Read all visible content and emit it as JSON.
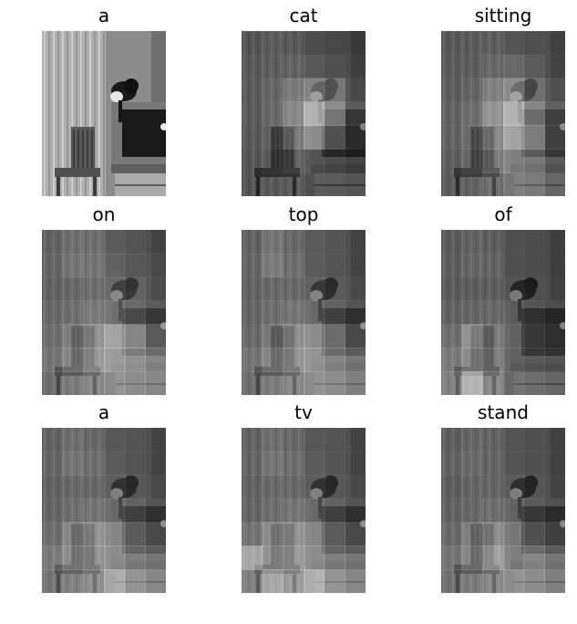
{
  "panels": [
    {
      "word": "a",
      "weights": null
    },
    {
      "word": "cat",
      "weights": [
        [
          0.05,
          0.1,
          0.08,
          0.1,
          0.06,
          0.05
        ],
        [
          0.08,
          0.12,
          0.15,
          0.18,
          0.12,
          0.08
        ],
        [
          0.1,
          0.18,
          0.35,
          0.5,
          0.4,
          0.15
        ],
        [
          0.1,
          0.2,
          0.45,
          0.85,
          0.6,
          0.25
        ],
        [
          0.08,
          0.15,
          0.35,
          0.6,
          0.4,
          0.18
        ],
        [
          0.06,
          0.1,
          0.15,
          0.2,
          0.15,
          0.1
        ],
        [
          0.05,
          0.08,
          0.1,
          0.12,
          0.1,
          0.06
        ]
      ]
    },
    {
      "word": "sitting",
      "weights": [
        [
          0.08,
          0.1,
          0.12,
          0.15,
          0.12,
          0.1
        ],
        [
          0.1,
          0.12,
          0.2,
          0.3,
          0.2,
          0.12
        ],
        [
          0.12,
          0.18,
          0.4,
          0.55,
          0.35,
          0.2
        ],
        [
          0.15,
          0.25,
          0.55,
          0.85,
          0.55,
          0.3
        ],
        [
          0.15,
          0.25,
          0.45,
          0.75,
          0.65,
          0.3
        ],
        [
          0.12,
          0.2,
          0.35,
          0.5,
          0.45,
          0.25
        ],
        [
          0.1,
          0.15,
          0.25,
          0.4,
          0.35,
          0.2
        ]
      ]
    },
    {
      "word": "on",
      "weights": [
        [
          0.15,
          0.25,
          0.25,
          0.2,
          0.15,
          0.12
        ],
        [
          0.18,
          0.3,
          0.3,
          0.25,
          0.18,
          0.15
        ],
        [
          0.15,
          0.2,
          0.25,
          0.3,
          0.25,
          0.18
        ],
        [
          0.2,
          0.25,
          0.35,
          0.4,
          0.35,
          0.25
        ],
        [
          0.25,
          0.4,
          0.55,
          0.75,
          0.7,
          0.45
        ],
        [
          0.3,
          0.45,
          0.6,
          0.7,
          0.65,
          0.55
        ],
        [
          0.25,
          0.35,
          0.45,
          0.55,
          0.5,
          0.45
        ]
      ]
    },
    {
      "word": "top",
      "weights": [
        [
          0.15,
          0.3,
          0.2,
          0.2,
          0.15,
          0.12
        ],
        [
          0.18,
          0.35,
          0.25,
          0.2,
          0.15,
          0.12
        ],
        [
          0.15,
          0.2,
          0.2,
          0.25,
          0.2,
          0.15
        ],
        [
          0.18,
          0.25,
          0.3,
          0.35,
          0.3,
          0.2
        ],
        [
          0.22,
          0.35,
          0.5,
          0.6,
          0.55,
          0.35
        ],
        [
          0.3,
          0.45,
          0.55,
          0.65,
          0.55,
          0.45
        ],
        [
          0.25,
          0.35,
          0.45,
          0.55,
          0.5,
          0.4
        ]
      ]
    },
    {
      "word": "of",
      "weights": [
        [
          0.1,
          0.15,
          0.12,
          0.12,
          0.1,
          0.08
        ],
        [
          0.12,
          0.18,
          0.15,
          0.12,
          0.1,
          0.08
        ],
        [
          0.1,
          0.12,
          0.12,
          0.15,
          0.12,
          0.1
        ],
        [
          0.15,
          0.18,
          0.2,
          0.25,
          0.2,
          0.15
        ],
        [
          0.25,
          0.55,
          0.35,
          0.3,
          0.25,
          0.2
        ],
        [
          0.35,
          0.5,
          0.4,
          0.3,
          0.25,
          0.22
        ],
        [
          0.4,
          0.8,
          0.45,
          0.3,
          0.25,
          0.2
        ]
      ]
    },
    {
      "word": "a",
      "weights": [
        [
          0.15,
          0.25,
          0.2,
          0.18,
          0.15,
          0.12
        ],
        [
          0.18,
          0.3,
          0.25,
          0.2,
          0.15,
          0.12
        ],
        [
          0.15,
          0.2,
          0.2,
          0.22,
          0.18,
          0.15
        ],
        [
          0.18,
          0.25,
          0.3,
          0.35,
          0.3,
          0.2
        ],
        [
          0.25,
          0.45,
          0.55,
          0.55,
          0.45,
          0.35
        ],
        [
          0.35,
          0.5,
          0.55,
          0.6,
          0.5,
          0.45
        ],
        [
          0.3,
          0.4,
          0.5,
          0.75,
          0.55,
          0.45
        ]
      ]
    },
    {
      "word": "tv",
      "weights": [
        [
          0.15,
          0.25,
          0.2,
          0.18,
          0.15,
          0.12
        ],
        [
          0.18,
          0.3,
          0.25,
          0.2,
          0.15,
          0.12
        ],
        [
          0.15,
          0.2,
          0.2,
          0.22,
          0.18,
          0.15
        ],
        [
          0.18,
          0.25,
          0.3,
          0.35,
          0.3,
          0.2
        ],
        [
          0.3,
          0.5,
          0.55,
          0.55,
          0.45,
          0.35
        ],
        [
          0.7,
          0.55,
          0.6,
          0.6,
          0.5,
          0.45
        ],
        [
          0.4,
          0.7,
          0.6,
          0.8,
          0.55,
          0.45
        ]
      ]
    },
    {
      "word": "stand",
      "weights": [
        [
          0.12,
          0.18,
          0.15,
          0.15,
          0.12,
          0.1
        ],
        [
          0.15,
          0.22,
          0.18,
          0.15,
          0.12,
          0.1
        ],
        [
          0.12,
          0.18,
          0.18,
          0.2,
          0.15,
          0.12
        ],
        [
          0.15,
          0.2,
          0.25,
          0.3,
          0.25,
          0.18
        ],
        [
          0.22,
          0.4,
          0.5,
          0.45,
          0.4,
          0.3
        ],
        [
          0.3,
          0.45,
          0.65,
          0.5,
          0.55,
          0.45
        ],
        [
          0.28,
          0.35,
          0.45,
          0.55,
          0.5,
          0.4
        ]
      ]
    }
  ]
}
